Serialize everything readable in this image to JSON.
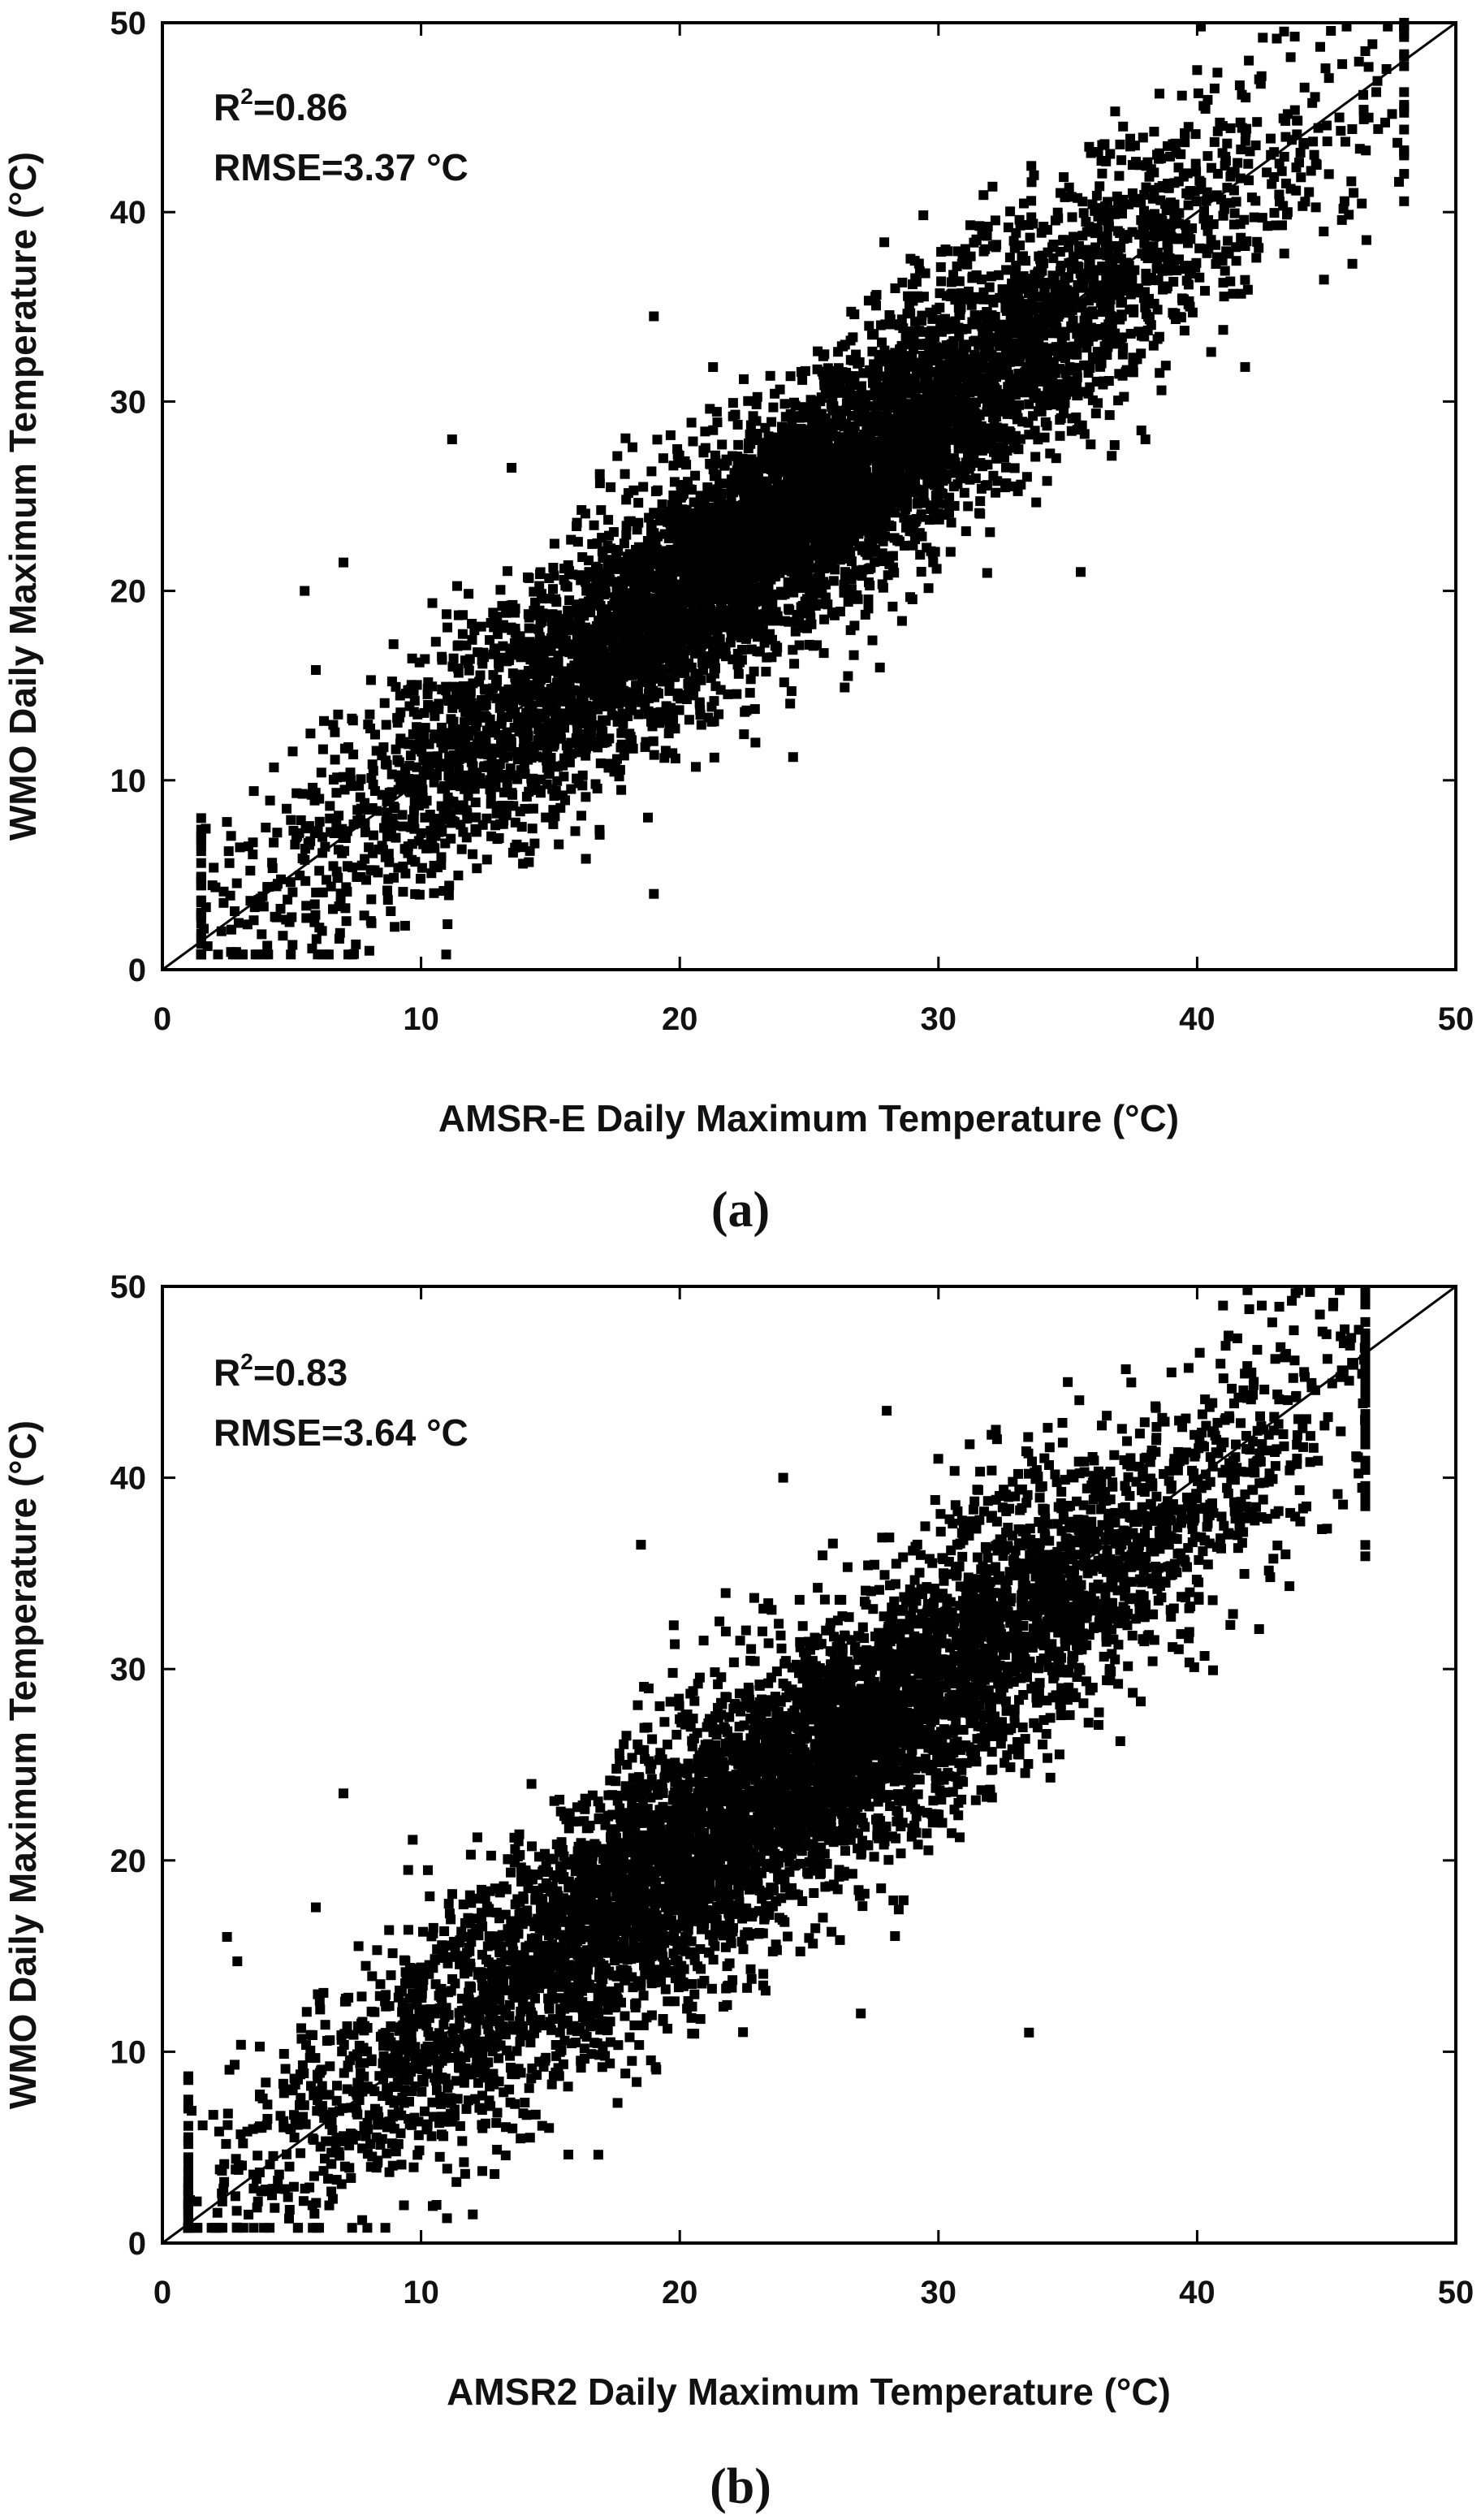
{
  "chart_data": [
    {
      "type": "scatter",
      "panel_label": "(a)",
      "xlabel": "AMSR-E Daily Maximum Temperature (°C)",
      "ylabel": "WMO Daily Maximum Temperature (°C)",
      "xlim": [
        0,
        50
      ],
      "ylim": [
        0,
        50
      ],
      "xticks": [
        "0",
        "10",
        "20",
        "30",
        "40",
        "50"
      ],
      "yticks": [
        "0",
        "10",
        "20",
        "30",
        "40",
        "50"
      ],
      "stats": {
        "r2_prefix": "R",
        "r2_sup": "2",
        "r2_value": "=0.86",
        "rmse": "RMSE=3.37 °C"
      },
      "reference_line": {
        "x": [
          0,
          50
        ],
        "y": [
          0,
          50
        ]
      },
      "point_model": {
        "n": 6500,
        "slope": 0.97,
        "intercept": 0.4,
        "spread": 3.3,
        "x_mean": 24,
        "x_sd": 9,
        "x_range": [
          1.5,
          48
        ]
      },
      "outliers": [
        {
          "x": 11.2,
          "y": 28.0
        },
        {
          "x": 19.0,
          "y": 4.0
        },
        {
          "x": 35.5,
          "y": 21.0
        },
        {
          "x": 38.0,
          "y": 28.0
        },
        {
          "x": 45.5,
          "y": 45.0
        },
        {
          "x": 46.5,
          "y": 48.5
        },
        {
          "x": 48.0,
          "y": 50.0
        },
        {
          "x": 8.0,
          "y": 1.0
        },
        {
          "x": 1.5,
          "y": 8.0
        },
        {
          "x": 5.5,
          "y": 20.0
        },
        {
          "x": 7.0,
          "y": 21.5
        },
        {
          "x": 19.0,
          "y": 34.5
        },
        {
          "x": 40.0,
          "y": 47.5
        },
        {
          "x": 43.5,
          "y": 40.0
        },
        {
          "x": 42.0,
          "y": 48.0
        },
        {
          "x": 13.5,
          "y": 26.5
        }
      ]
    },
    {
      "type": "scatter",
      "panel_label": "(b)",
      "xlabel": "AMSR2 Daily Maximum Temperature (°C)",
      "ylabel": "WMO Daily Maximum Temperature (°C)",
      "xlim": [
        0,
        50
      ],
      "ylim": [
        0,
        50
      ],
      "xticks": [
        "0",
        "10",
        "20",
        "30",
        "40",
        "50"
      ],
      "yticks": [
        "0",
        "10",
        "20",
        "30",
        "40",
        "50"
      ],
      "stats": {
        "r2_prefix": "R",
        "r2_sup": "2",
        "r2_value": "=0.83",
        "rmse": "RMSE=3.64 °C"
      },
      "reference_line": {
        "x": [
          0,
          50
        ],
        "y": [
          0,
          50
        ]
      },
      "point_model": {
        "n": 6500,
        "slope": 0.95,
        "intercept": 1.0,
        "spread": 3.5,
        "x_mean": 24,
        "x_sd": 9.5,
        "x_range": [
          1.0,
          46.5
        ]
      },
      "outliers": [
        {
          "x": 33.5,
          "y": 11.0
        },
        {
          "x": 7.0,
          "y": 23.5
        },
        {
          "x": 18.5,
          "y": 36.5
        },
        {
          "x": 24.0,
          "y": 40.0
        },
        {
          "x": 28.0,
          "y": 43.5
        },
        {
          "x": 46.5,
          "y": 46.0
        },
        {
          "x": 45.0,
          "y": 47.5
        },
        {
          "x": 41.0,
          "y": 49.0
        },
        {
          "x": 2.5,
          "y": 16.0
        },
        {
          "x": 1.0,
          "y": 7.5
        },
        {
          "x": 27.0,
          "y": 12.0
        },
        {
          "x": 12.0,
          "y": 1.5
        },
        {
          "x": 11.0,
          "y": 1.3
        },
        {
          "x": 42.5,
          "y": 49.0
        },
        {
          "x": 35.0,
          "y": 45.0
        },
        {
          "x": 9.5,
          "y": 19.5
        }
      ]
    }
  ]
}
